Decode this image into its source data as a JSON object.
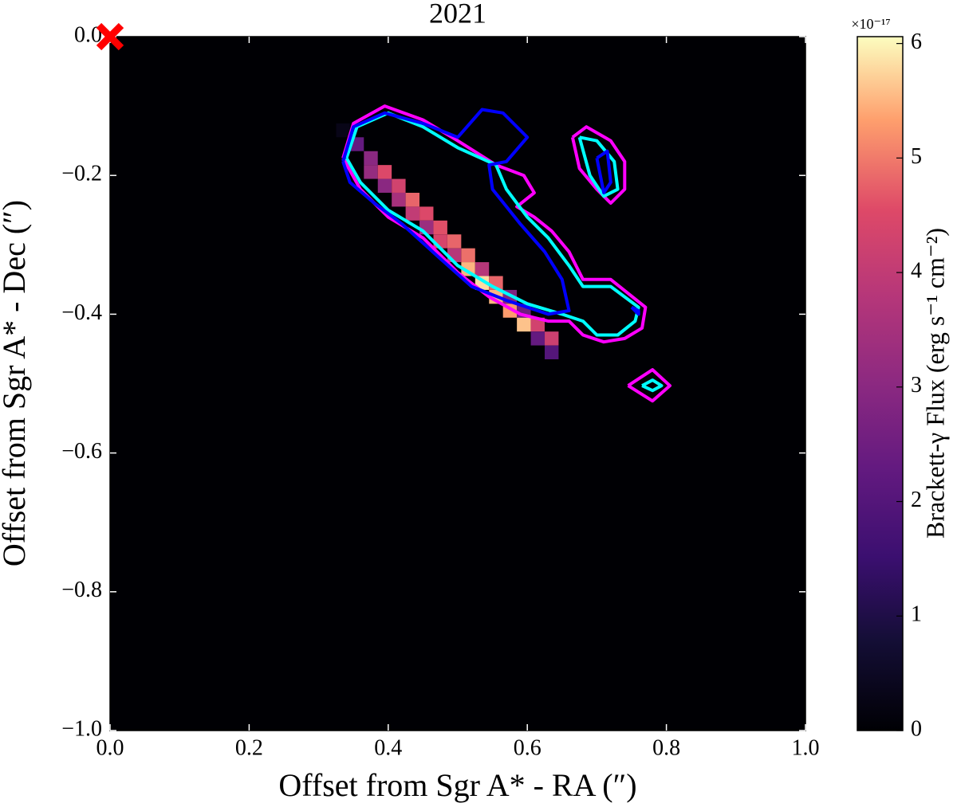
{
  "chart_data": {
    "type": "heatmap",
    "title": "2021",
    "x_label": "Offset from Sgr A* - RA (″)",
    "y_label": "Offset from Sgr A* - Dec (″)",
    "xlim": [
      0,
      1.0
    ],
    "ylim": [
      -1.0,
      0
    ],
    "xticks": [
      {
        "value": 0,
        "label": "0.0"
      },
      0.2,
      0.4,
      0.6,
      0.8,
      {
        "value": 1,
        "label": "1.0"
      }
    ],
    "yticks": [
      {
        "value": 0,
        "label": "0.0"
      },
      {
        "value": -0.2,
        "label": "−0.2"
      },
      {
        "value": -0.4,
        "label": "−0.4"
      },
      {
        "value": -0.6,
        "label": "−0.6"
      },
      {
        "value": -0.8,
        "label": "−0.8"
      },
      {
        "value": -1,
        "label": "−1.0"
      }
    ],
    "background": "#000004",
    "colormap": "magma",
    "colorbar": {
      "label": "Brackett-γ Flux (erg s⁻¹ cm⁻²)",
      "offset_label": "×10⁻¹⁷",
      "lim": [
        0,
        6.06
      ],
      "ticks": [
        0,
        1,
        2,
        3,
        4,
        5,
        6
      ]
    },
    "cells": {
      "x": [
        0.335,
        0.355,
        0.375,
        0.375,
        0.395,
        0.395,
        0.415,
        0.415,
        0.435,
        0.435,
        0.455,
        0.455,
        0.475,
        0.475,
        0.495,
        0.495,
        0.515,
        0.515,
        0.535,
        0.535,
        0.555,
        0.555,
        0.575,
        0.575,
        0.595,
        0.595,
        0.615,
        0.615,
        0.635,
        0.635
      ],
      "y": [
        -0.135,
        -0.155,
        -0.175,
        -0.195,
        -0.195,
        -0.215,
        -0.215,
        -0.235,
        -0.235,
        -0.255,
        -0.255,
        -0.275,
        -0.275,
        -0.295,
        -0.295,
        -0.315,
        -0.315,
        -0.335,
        -0.335,
        -0.355,
        -0.355,
        -0.375,
        -0.375,
        -0.395,
        -0.395,
        -0.415,
        -0.415,
        -0.435,
        -0.435,
        -0.455
      ],
      "values": [
        0.3,
        2.3,
        3.0,
        3.2,
        4.5,
        3.0,
        4.3,
        3.5,
        4.8,
        4.0,
        4.5,
        3.3,
        4.6,
        4.4,
        4.8,
        3.8,
        4.9,
        5.5,
        3.8,
        5.8,
        4.8,
        5.5,
        2.8,
        5.3,
        2.5,
        5.6,
        4.3,
        2.3,
        4.2,
        2.0
      ]
    },
    "contours": [
      {
        "color": "#ff00ff",
        "x": [
          0.335,
          0.35,
          0.395,
          0.45,
          0.5,
          0.555,
          0.595,
          0.61,
          0.585,
          0.61,
          0.635,
          0.66,
          0.68,
          0.72,
          0.77,
          0.765,
          0.74,
          0.71,
          0.68,
          0.66,
          0.63,
          0.59,
          0.545,
          0.5,
          0.45,
          0.4,
          0.36,
          0.335
        ],
        "y": [
          -0.175,
          -0.125,
          -0.1,
          -0.12,
          -0.15,
          -0.185,
          -0.2,
          -0.225,
          -0.245,
          -0.26,
          -0.28,
          -0.31,
          -0.35,
          -0.35,
          -0.39,
          -0.42,
          -0.435,
          -0.44,
          -0.43,
          -0.41,
          -0.41,
          -0.4,
          -0.375,
          -0.34,
          -0.29,
          -0.26,
          -0.22,
          -0.175
        ]
      },
      {
        "color": "#ff00ff",
        "x": [
          0.665,
          0.685,
          0.72,
          0.74,
          0.74,
          0.72,
          0.7,
          0.675,
          0.665
        ],
        "y": [
          -0.145,
          -0.13,
          -0.15,
          -0.18,
          -0.22,
          -0.24,
          -0.22,
          -0.19,
          -0.145
        ]
      },
      {
        "color": "#ff00ff",
        "x": [
          0.745,
          0.78,
          0.805,
          0.78,
          0.745
        ],
        "y": [
          -0.503,
          -0.48,
          -0.503,
          -0.525,
          -0.503
        ]
      },
      {
        "color": "#00ffff",
        "x": [
          0.34,
          0.355,
          0.4,
          0.45,
          0.5,
          0.555,
          0.57,
          0.6,
          0.63,
          0.66,
          0.68,
          0.72,
          0.76,
          0.755,
          0.73,
          0.7,
          0.68,
          0.65,
          0.6,
          0.55,
          0.5,
          0.45,
          0.4,
          0.36,
          0.34
        ],
        "y": [
          -0.175,
          -0.13,
          -0.11,
          -0.13,
          -0.16,
          -0.185,
          -0.22,
          -0.26,
          -0.29,
          -0.33,
          -0.36,
          -0.36,
          -0.39,
          -0.41,
          -0.43,
          -0.43,
          -0.41,
          -0.4,
          -0.385,
          -0.36,
          -0.33,
          -0.28,
          -0.25,
          -0.21,
          -0.175
        ]
      },
      {
        "color": "#00ffff",
        "x": [
          0.675,
          0.7,
          0.725,
          0.73,
          0.71,
          0.69,
          0.675
        ],
        "y": [
          -0.145,
          -0.15,
          -0.18,
          -0.22,
          -0.23,
          -0.2,
          -0.145
        ]
      },
      {
        "color": "#00ffff",
        "x": [
          0.765,
          0.78,
          0.793,
          0.78,
          0.765
        ],
        "y": [
          -0.503,
          -0.495,
          -0.503,
          -0.51,
          -0.503
        ]
      },
      {
        "color": "#0000ff",
        "x": [
          0.335,
          0.35,
          0.395,
          0.45,
          0.5,
          0.535,
          0.565,
          0.6,
          0.57,
          0.545,
          0.55,
          0.59,
          0.625,
          0.65,
          0.66,
          0.63,
          0.57,
          0.52,
          0.475,
          0.42,
          0.38,
          0.345,
          0.335
        ],
        "y": [
          -0.18,
          -0.13,
          -0.11,
          -0.125,
          -0.145,
          -0.105,
          -0.11,
          -0.145,
          -0.18,
          -0.185,
          -0.22,
          -0.27,
          -0.31,
          -0.35,
          -0.395,
          -0.4,
          -0.38,
          -0.36,
          -0.32,
          -0.27,
          -0.24,
          -0.21,
          -0.18
        ]
      },
      {
        "color": "#0000ff",
        "x": [
          0.7,
          0.715,
          0.72,
          0.71,
          0.7
        ],
        "y": [
          -0.175,
          -0.165,
          -0.21,
          -0.225,
          -0.175
        ]
      },
      {
        "color": "#0000ff",
        "x": [
          0.75,
          0.76,
          0.76,
          0.75
        ],
        "y": [
          -0.39,
          -0.395,
          -0.4,
          -0.39
        ]
      }
    ],
    "marker": {
      "x": [
        0
      ],
      "y": [
        0
      ],
      "color": "#ff0000"
    }
  }
}
